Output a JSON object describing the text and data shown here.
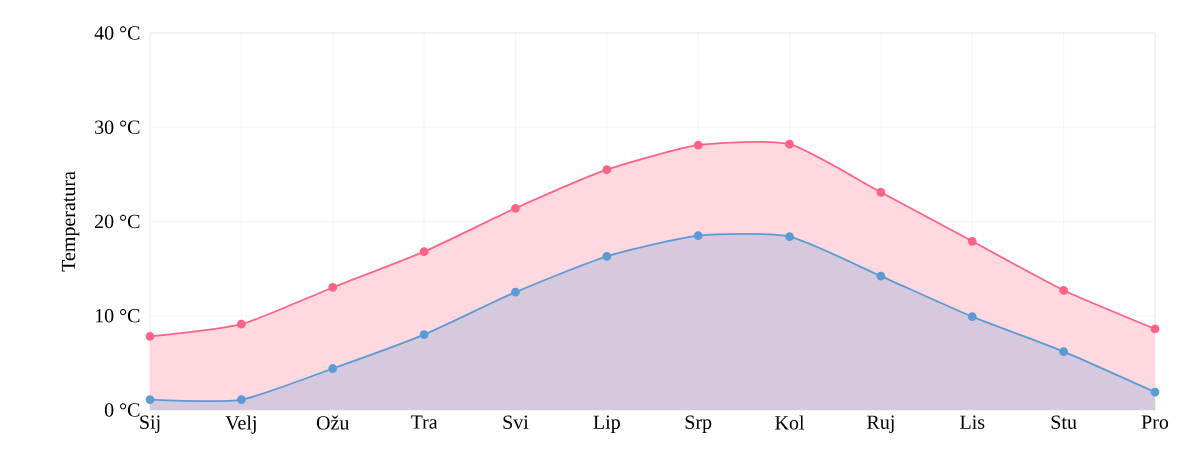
{
  "chart_data": {
    "type": "area",
    "ylabel": "Temperatura",
    "categories": [
      "Sij",
      "Velj",
      "Ožu",
      "Tra",
      "Svi",
      "Lip",
      "Srp",
      "Kol",
      "Ruj",
      "Lis",
      "Stu",
      "Pro"
    ],
    "series": [
      {
        "color": "#ff6384",
        "values": [
          7.8,
          9.1,
          13.0,
          16.8,
          21.4,
          25.5,
          28.1,
          28.2,
          23.1,
          17.9,
          12.7,
          8.6
        ]
      },
      {
        "color": "#5b9bd5",
        "values": [
          1.1,
          1.1,
          4.4,
          8.0,
          12.5,
          16.3,
          18.5,
          18.4,
          14.2,
          9.9,
          6.2,
          1.9
        ]
      }
    ],
    "ylim": [
      0,
      40
    ],
    "yticks": [
      {
        "value": 0,
        "label": "0 °C"
      },
      {
        "value": 10,
        "label": "10 °C"
      },
      {
        "value": 20,
        "label": "20 °C"
      },
      {
        "value": 30,
        "label": "30 °C"
      },
      {
        "value": 40,
        "label": "40 °C"
      }
    ],
    "grid": true,
    "marker": "circle"
  }
}
